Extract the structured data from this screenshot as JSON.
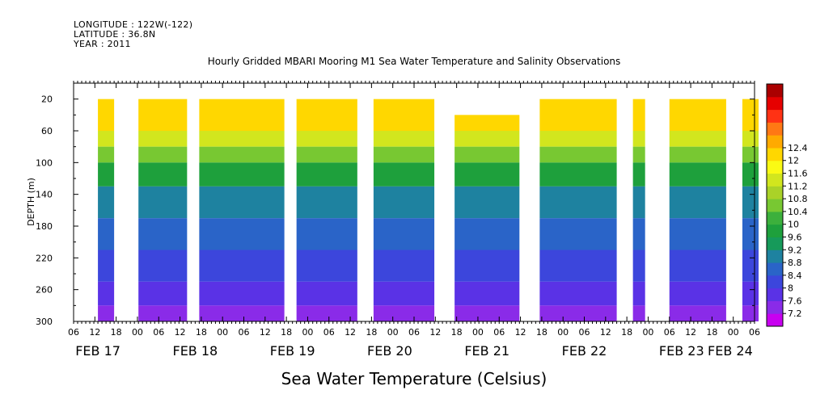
{
  "header": {
    "longitude": "LONGITUDE : 122W(-122)",
    "latitude": "LATITUDE : 36.8N",
    "year": "YEAR : 2011",
    "title": "Hourly Gridded MBARI Mooring M1 Sea Water Temperature and Salinity Observations"
  },
  "chart_data": {
    "type": "heatmap",
    "title": "Hourly Gridded MBARI Mooring M1 Sea Water Temperature and Salinity Observations",
    "xlabel": "Sea Water Temperature (Celsius)",
    "ylabel": "DEPTH (m)",
    "x_start": "2011-02-17 06:00",
    "x_end": "2011-02-24 06:00",
    "x_hour_ticks": [
      "06",
      "12",
      "18",
      "00",
      "06",
      "12",
      "18",
      "00",
      "06",
      "12",
      "18",
      "00",
      "06",
      "12",
      "18",
      "00",
      "06",
      "12",
      "18",
      "00",
      "06",
      "12",
      "18",
      "00",
      "06",
      "12",
      "18",
      "00",
      "06",
      "12",
      "18",
      "00",
      "06"
    ],
    "x_day_labels": [
      {
        "label": "FEB 17",
        "time": "2011-02-17 12:00"
      },
      {
        "label": "FEB 18",
        "time": "2011-02-18 12:00"
      },
      {
        "label": "FEB 19",
        "time": "2011-02-19 12:00"
      },
      {
        "label": "FEB 20",
        "time": "2011-02-20 12:00"
      },
      {
        "label": "FEB 21",
        "time": "2011-02-21 12:00"
      },
      {
        "label": "FEB 22",
        "time": "2011-02-22 12:00"
      },
      {
        "label": "FEB 23",
        "time": "2011-02-23 12:00"
      },
      {
        "label": "FEB 24",
        "time": "2011-02-24 00:00"
      }
    ],
    "y_ticks": [
      20,
      60,
      100,
      140,
      180,
      220,
      260,
      300
    ],
    "ylim": [
      300,
      0
    ],
    "colorbar_levels": [
      7.2,
      7.6,
      8,
      8.4,
      8.8,
      9.2,
      9.6,
      10,
      10.4,
      10.8,
      11.2,
      11.6,
      12,
      12.4
    ],
    "colorbar_colors": [
      "#c800f0",
      "#8a2be8",
      "#5a32e6",
      "#3c46dc",
      "#2a64c8",
      "#1e82a0",
      "#169a5a",
      "#1ea03c",
      "#3cb03c",
      "#78c832",
      "#aad228",
      "#d2e61e",
      "#fafa14",
      "#ffd700",
      "#ffaa00",
      "#ff7814",
      "#ff3214",
      "#e60000",
      "#aa0000"
    ],
    "thermocline_bands": [
      {
        "depth_max": 60,
        "temp": 12.2
      },
      {
        "depth_max": 80,
        "temp": 11.2
      },
      {
        "depth_max": 100,
        "temp": 10.5
      },
      {
        "depth_max": 130,
        "temp": 9.6
      },
      {
        "depth_max": 170,
        "temp": 9.0
      },
      {
        "depth_max": 210,
        "temp": 8.6
      },
      {
        "depth_max": 250,
        "temp": 8.1
      },
      {
        "depth_max": 280,
        "temp": 7.7
      },
      {
        "depth_max": 300,
        "temp": 7.4
      }
    ],
    "data_segments": [
      {
        "start": "2011-02-17 12:00",
        "end": "2011-02-17 16:00",
        "top_depth": 20
      },
      {
        "start": "2011-02-17 22:00",
        "end": "2011-02-18 10:00",
        "top_depth": 20
      },
      {
        "start": "2011-02-18 13:00",
        "end": "2011-02-19 10:00",
        "top_depth": 20
      },
      {
        "start": "2011-02-19 13:00",
        "end": "2011-02-20 04:00",
        "top_depth": 20
      },
      {
        "start": "2011-02-20 08:00",
        "end": "2011-02-20 23:00",
        "top_depth": 20
      },
      {
        "start": "2011-02-21 04:00",
        "end": "2011-02-21 20:00",
        "top_depth": 40
      },
      {
        "start": "2011-02-22 01:00",
        "end": "2011-02-22 20:00",
        "top_depth": 20
      },
      {
        "start": "2011-02-23 00:00",
        "end": "2011-02-23 03:00",
        "top_depth": 20
      },
      {
        "start": "2011-02-23 09:00",
        "end": "2011-02-23 23:00",
        "top_depth": 20
      },
      {
        "start": "2011-02-24 03:00",
        "end": "2011-02-24 07:00",
        "top_depth": 20
      }
    ]
  }
}
